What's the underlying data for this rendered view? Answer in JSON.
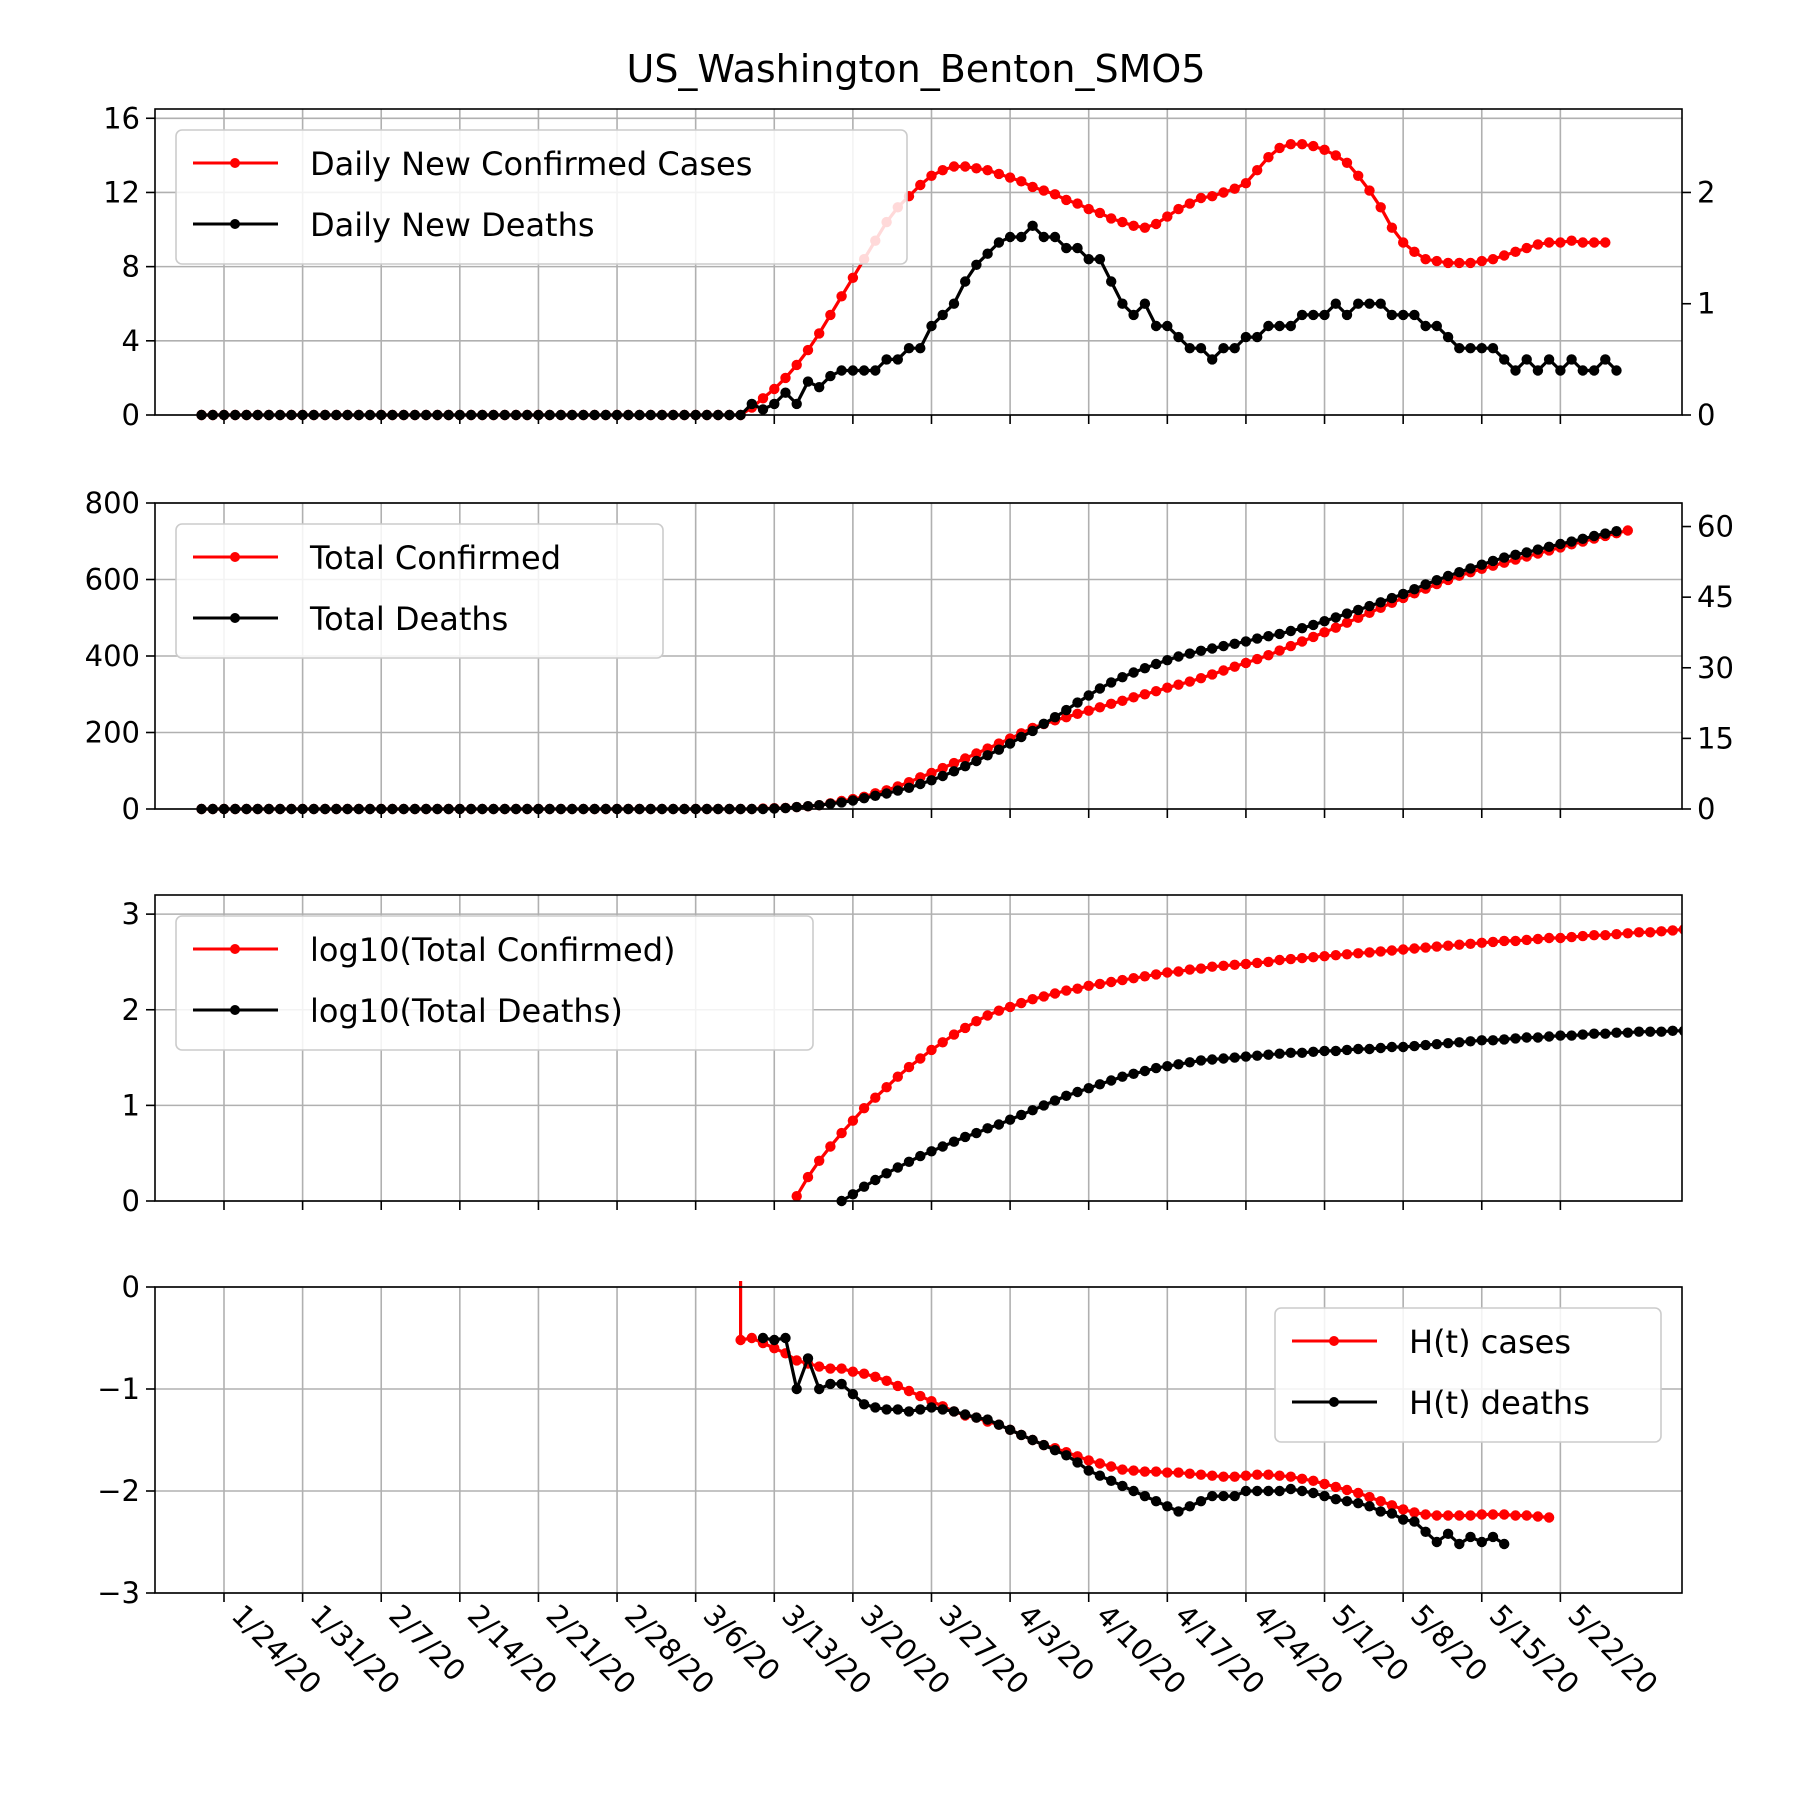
{
  "figure_title": "US_Washington_Benton_SMO5",
  "x_tick_labels": [
    "1/24/20",
    "1/31/20",
    "2/7/20",
    "2/14/20",
    "2/21/20",
    "2/28/20",
    "3/6/20",
    "3/13/20",
    "3/20/20",
    "3/27/20",
    "4/3/20",
    "4/10/20",
    "4/17/20",
    "4/24/20",
    "5/1/20",
    "5/8/20",
    "5/15/20",
    "5/22/20"
  ],
  "colors": {
    "cases": "#ff0000",
    "deaths": "#000000",
    "grid": "#b0b0b0"
  },
  "chart_data": [
    {
      "type": "line",
      "title": "US_Washington_Benton_SMO5",
      "x_start": "1/22/20",
      "x_end": "5/26/20",
      "xlim": [
        "1/13/20",
        "6/6/20"
      ],
      "ylim": [
        0,
        16.5
      ],
      "y_ticks": [
        0,
        4,
        8,
        12,
        16
      ],
      "y2lim": [
        0,
        2.75
      ],
      "y2_ticks": [
        0,
        1,
        2
      ],
      "grid": true,
      "legend_position": "upper-left",
      "series": [
        {
          "name": "Daily New Confirmed Cases",
          "color": "#ff0000",
          "axis": "left",
          "values": [
            0,
            0,
            0,
            0,
            0,
            0,
            0,
            0,
            0,
            0,
            0,
            0,
            0,
            0,
            0,
            0,
            0,
            0,
            0,
            0,
            0,
            0,
            0,
            0,
            0,
            0,
            0,
            0,
            0,
            0,
            0,
            0,
            0,
            0,
            0,
            0,
            0,
            0,
            0,
            0,
            0,
            0,
            0,
            0,
            0,
            0,
            0,
            0,
            0,
            0.4,
            0.9,
            1.4,
            2.0,
            2.7,
            3.5,
            4.4,
            5.4,
            6.4,
            7.4,
            8.4,
            9.4,
            10.4,
            11.2,
            11.8,
            12.4,
            12.9,
            13.2,
            13.4,
            13.4,
            13.3,
            13.2,
            13.0,
            12.8,
            12.6,
            12.3,
            12.1,
            11.9,
            11.6,
            11.4,
            11.1,
            10.9,
            10.6,
            10.4,
            10.2,
            10.1,
            10.3,
            10.7,
            11.1,
            11.4,
            11.7,
            11.8,
            12.0,
            12.2,
            12.5,
            13.2,
            13.9,
            14.4,
            14.6,
            14.6,
            14.5,
            14.3,
            14.0,
            13.6,
            12.9,
            12.1,
            11.2,
            10.1,
            9.3,
            8.8,
            8.4,
            8.3,
            8.2,
            8.2,
            8.2,
            8.3,
            8.4,
            8.6,
            8.8,
            9.0,
            9.2,
            9.3,
            9.3,
            9.4,
            9.3,
            9.3,
            9.3
          ]
        },
        {
          "name": "Daily New Deaths",
          "color": "#000000",
          "axis": "right",
          "values": [
            0,
            0,
            0,
            0,
            0,
            0,
            0,
            0,
            0,
            0,
            0,
            0,
            0,
            0,
            0,
            0,
            0,
            0,
            0,
            0,
            0,
            0,
            0,
            0,
            0,
            0,
            0,
            0,
            0,
            0,
            0,
            0,
            0,
            0,
            0,
            0,
            0,
            0,
            0,
            0,
            0,
            0,
            0,
            0,
            0,
            0,
            0,
            0,
            0,
            0.1,
            0.05,
            0.1,
            0.2,
            0.1,
            0.3,
            0.25,
            0.35,
            0.4,
            0.4,
            0.4,
            0.4,
            0.5,
            0.5,
            0.6,
            0.6,
            0.8,
            0.9,
            1.0,
            1.2,
            1.35,
            1.45,
            1.55,
            1.6,
            1.6,
            1.7,
            1.6,
            1.6,
            1.5,
            1.5,
            1.4,
            1.4,
            1.2,
            1.0,
            0.9,
            1.0,
            0.8,
            0.8,
            0.7,
            0.6,
            0.6,
            0.5,
            0.6,
            0.6,
            0.7,
            0.7,
            0.8,
            0.8,
            0.8,
            0.9,
            0.9,
            0.9,
            1.0,
            0.9,
            1.0,
            1.0,
            1.0,
            0.9,
            0.9,
            0.9,
            0.8,
            0.8,
            0.7,
            0.6,
            0.6,
            0.6,
            0.6,
            0.5,
            0.4,
            0.5,
            0.4,
            0.5,
            0.4,
            0.5,
            0.4,
            0.4,
            0.5,
            0.4
          ]
        }
      ]
    },
    {
      "type": "line",
      "x_start": "1/22/20",
      "x_end": "5/26/20",
      "ylim": [
        0,
        800
      ],
      "y_ticks": [
        0,
        200,
        400,
        600,
        800
      ],
      "y2lim": [
        0,
        65
      ],
      "y2_ticks": [
        0,
        15,
        30,
        45,
        60
      ],
      "grid": true,
      "legend_position": "upper-left",
      "series": [
        {
          "name": "Total Confirmed",
          "color": "#ff0000",
          "axis": "left",
          "values": [
            0,
            0,
            0,
            0,
            0,
            0,
            0,
            0,
            0,
            0,
            0,
            0,
            0,
            0,
            0,
            0,
            0,
            0,
            0,
            0,
            0,
            0,
            0,
            0,
            0,
            0,
            0,
            0,
            0,
            0,
            0,
            0,
            0,
            0,
            0,
            0,
            0,
            0,
            0,
            0,
            0,
            0,
            0,
            0,
            0,
            0,
            0,
            0,
            0,
            0,
            1,
            2,
            3,
            5,
            7,
            10,
            15,
            21,
            26,
            32,
            41,
            49,
            59,
            70,
            83,
            94,
            107,
            120,
            132,
            145,
            158,
            171,
            184,
            198,
            212,
            222,
            232,
            240,
            249,
            257,
            266,
            275,
            283,
            292,
            300,
            308,
            317,
            325,
            333,
            342,
            352,
            362,
            372,
            382,
            392,
            402,
            414,
            426,
            438,
            450,
            462,
            474,
            487,
            500,
            513,
            526,
            539,
            552,
            564,
            576,
            588,
            599,
            610,
            619,
            628,
            636,
            644,
            652,
            660,
            668,
            676,
            684,
            692,
            699,
            707,
            714,
            721,
            728
          ]
        },
        {
          "name": "Total Deaths",
          "color": "#000000",
          "axis": "right",
          "values": [
            0,
            0,
            0,
            0,
            0,
            0,
            0,
            0,
            0,
            0,
            0,
            0,
            0,
            0,
            0,
            0,
            0,
            0,
            0,
            0,
            0,
            0,
            0,
            0,
            0,
            0,
            0,
            0,
            0,
            0,
            0,
            0,
            0,
            0,
            0,
            0,
            0,
            0,
            0,
            0,
            0,
            0,
            0,
            0,
            0,
            0,
            0,
            0,
            0,
            0,
            0,
            0.1,
            0.2,
            0.4,
            0.6,
            0.8,
            1.1,
            1.4,
            1.8,
            2.3,
            2.8,
            3.3,
            3.9,
            4.5,
            5.3,
            6.1,
            7.0,
            8.0,
            9.1,
            10.2,
            11.4,
            12.6,
            13.9,
            15.3,
            16.6,
            18.1,
            19.5,
            21.0,
            22.6,
            24.1,
            25.6,
            26.9,
            28.0,
            29.0,
            29.9,
            30.8,
            31.6,
            32.4,
            33.0,
            33.6,
            34.1,
            34.6,
            35.1,
            35.6,
            36.2,
            36.7,
            37.2,
            37.8,
            38.4,
            39.1,
            39.9,
            40.7,
            41.5,
            42.3,
            43.1,
            43.9,
            44.8,
            45.7,
            46.7,
            47.7,
            48.6,
            49.5,
            50.3,
            51.1,
            51.9,
            52.7,
            53.4,
            54.0,
            54.5,
            55.1,
            55.7,
            56.3,
            56.8,
            57.4,
            58.0,
            58.5,
            59.0
          ]
        }
      ]
    },
    {
      "type": "line",
      "x_start": "1/22/20",
      "x_end": "5/26/20",
      "ylim": [
        0,
        3.2
      ],
      "y_ticks": [
        0,
        1,
        2,
        3
      ],
      "grid": true,
      "legend_position": "upper-left",
      "series": [
        {
          "name": "log10(Total Confirmed)",
          "color": "#ff0000",
          "start_index": 53,
          "values": [
            0.05,
            0.25,
            0.42,
            0.57,
            0.71,
            0.84,
            0.97,
            1.08,
            1.19,
            1.3,
            1.4,
            1.49,
            1.58,
            1.66,
            1.74,
            1.81,
            1.88,
            1.94,
            1.99,
            2.03,
            2.07,
            2.11,
            2.14,
            2.17,
            2.2,
            2.22,
            2.25,
            2.27,
            2.29,
            2.31,
            2.33,
            2.35,
            2.37,
            2.39,
            2.4,
            2.42,
            2.43,
            2.45,
            2.46,
            2.47,
            2.48,
            2.49,
            2.5,
            2.52,
            2.53,
            2.54,
            2.55,
            2.56,
            2.57,
            2.58,
            2.59,
            2.6,
            2.61,
            2.62,
            2.63,
            2.64,
            2.65,
            2.66,
            2.67,
            2.68,
            2.69,
            2.7,
            2.71,
            2.72,
            2.72,
            2.73,
            2.74,
            2.75,
            2.75,
            2.76,
            2.77,
            2.78,
            2.78,
            2.79,
            2.8,
            2.81,
            2.81,
            2.82,
            2.83,
            2.84,
            2.84,
            2.85,
            2.86
          ]
        },
        {
          "name": "log10(Total Deaths)",
          "color": "#000000",
          "start_index": 57,
          "values": [
            0.0,
            0.07,
            0.15,
            0.22,
            0.29,
            0.35,
            0.41,
            0.47,
            0.52,
            0.57,
            0.62,
            0.67,
            0.71,
            0.76,
            0.8,
            0.85,
            0.9,
            0.95,
            1.0,
            1.05,
            1.1,
            1.14,
            1.18,
            1.22,
            1.26,
            1.3,
            1.33,
            1.36,
            1.39,
            1.41,
            1.43,
            1.45,
            1.47,
            1.48,
            1.49,
            1.5,
            1.51,
            1.52,
            1.53,
            1.54,
            1.55,
            1.55,
            1.56,
            1.57,
            1.57,
            1.58,
            1.59,
            1.59,
            1.6,
            1.61,
            1.61,
            1.62,
            1.63,
            1.64,
            1.65,
            1.66,
            1.67,
            1.68,
            1.68,
            1.69,
            1.7,
            1.71,
            1.71,
            1.72,
            1.73,
            1.73,
            1.74,
            1.75,
            1.75,
            1.76,
            1.76,
            1.77,
            1.77,
            1.77,
            1.78,
            1.78,
            1.78,
            1.78,
            1.78
          ]
        }
      ]
    },
    {
      "type": "line",
      "x_start": "1/22/20",
      "x_end": "5/26/20",
      "ylim": [
        -3,
        0
      ],
      "y_ticks": [
        0,
        -1,
        -2,
        -3
      ],
      "grid": true,
      "legend_position": "upper-right",
      "series": [
        {
          "name": "H(t) cases",
          "color": "#ff0000",
          "start_index": 48,
          "lead_in_from_top": true,
          "values": [
            -0.52,
            -0.5,
            -0.55,
            -0.6,
            -0.65,
            -0.72,
            -0.75,
            -0.78,
            -0.8,
            -0.8,
            -0.83,
            -0.85,
            -0.88,
            -0.92,
            -0.97,
            -1.02,
            -1.07,
            -1.12,
            -1.17,
            -1.22,
            -1.26,
            -1.28,
            -1.32,
            -1.35,
            -1.4,
            -1.45,
            -1.5,
            -1.55,
            -1.58,
            -1.62,
            -1.66,
            -1.7,
            -1.73,
            -1.76,
            -1.79,
            -1.8,
            -1.81,
            -1.81,
            -1.82,
            -1.82,
            -1.83,
            -1.84,
            -1.85,
            -1.86,
            -1.86,
            -1.85,
            -1.84,
            -1.84,
            -1.85,
            -1.86,
            -1.88,
            -1.9,
            -1.93,
            -1.96,
            -1.99,
            -2.02,
            -2.06,
            -2.1,
            -2.14,
            -2.18,
            -2.21,
            -2.23,
            -2.24,
            -2.24,
            -2.24,
            -2.24,
            -2.23,
            -2.23,
            -2.23,
            -2.24,
            -2.24,
            -2.25,
            -2.26
          ]
        },
        {
          "name": "H(t) deaths",
          "color": "#000000",
          "start_index": 50,
          "values": [
            -0.5,
            -0.52,
            -0.5,
            -1.0,
            -0.7,
            -1.0,
            -0.95,
            -0.95,
            -1.05,
            -1.15,
            -1.18,
            -1.2,
            -1.2,
            -1.22,
            -1.2,
            -1.18,
            -1.2,
            -1.22,
            -1.25,
            -1.28,
            -1.3,
            -1.35,
            -1.4,
            -1.45,
            -1.5,
            -1.55,
            -1.6,
            -1.65,
            -1.72,
            -1.8,
            -1.85,
            -1.9,
            -1.95,
            -2.0,
            -2.05,
            -2.1,
            -2.15,
            -2.2,
            -2.15,
            -2.1,
            -2.05,
            -2.05,
            -2.05,
            -2.0,
            -2.0,
            -2.0,
            -2.0,
            -1.98,
            -2.0,
            -2.02,
            -2.05,
            -2.08,
            -2.1,
            -2.12,
            -2.15,
            -2.2,
            -2.22,
            -2.28,
            -2.3,
            -2.4,
            -2.5,
            -2.42,
            -2.52,
            -2.45,
            -2.5,
            -2.45,
            -2.52
          ]
        }
      ]
    }
  ]
}
